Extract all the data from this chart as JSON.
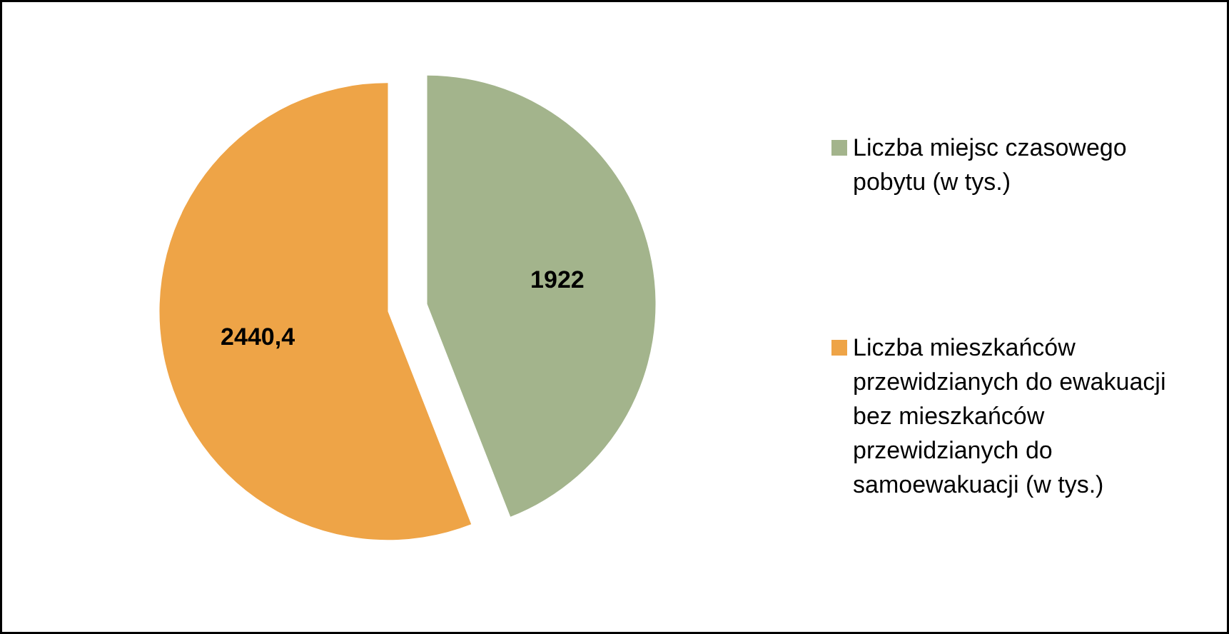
{
  "chart_data": {
    "type": "pie",
    "categories": [
      "Liczba miejsc czasowego pobytu (w tys.)",
      "Liczba mieszkańców przewidzianych do ewakuacji bez mieszkańców przewidzianych do samoewakuacji (w tys.)"
    ],
    "values": [
      1922,
      2440.4
    ],
    "colors": [
      "#a3b48c",
      "#eea447"
    ],
    "value_labels": [
      "1922",
      "2440,4"
    ],
    "legend": "right"
  }
}
